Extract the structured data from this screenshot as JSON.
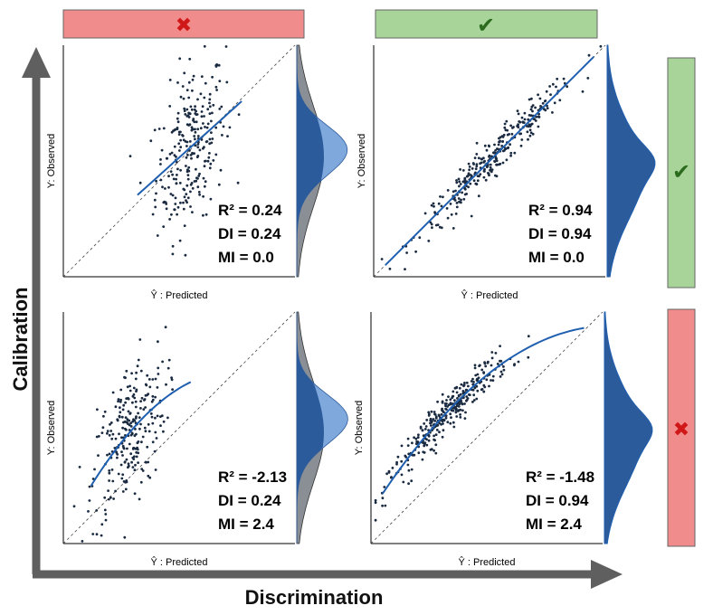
{
  "figure": {
    "x_axis_label": "Discrimination",
    "y_axis_label": "Calibration",
    "colors": {
      "bad": "#f08c8c",
      "good": "#a8d49a",
      "fit_line": "#1f5fb0",
      "points": "#1a2a40",
      "density_dark": "#2c5b9c",
      "density_light": "#7fa8dc",
      "density_gray": "#8a8f96"
    },
    "column_headers": [
      {
        "status": "bad",
        "icon": "cross-icon",
        "glyph": "✖"
      },
      {
        "status": "good",
        "icon": "check-icon",
        "glyph": "✔"
      }
    ],
    "row_headers": [
      {
        "status": "good",
        "icon": "check-icon",
        "glyph": "✔"
      },
      {
        "status": "bad",
        "icon": "cross-icon",
        "glyph": "✖"
      }
    ]
  },
  "chart_data": [
    {
      "type": "scatter",
      "position": "top-left",
      "xlabel": "Ŷ : Predicted",
      "ylabel": "Y: Observed",
      "xlim": [
        0,
        1
      ],
      "ylim": [
        0,
        1
      ],
      "fit": "linear",
      "reference_line": "y = x (dashed)",
      "stats": {
        "r2": "R² = 0.24",
        "di": "DI = 0.24",
        "mi": "MI = 0.0"
      },
      "density": "two overlapping densities (gray and light blue) with dark overlap"
    },
    {
      "type": "scatter",
      "position": "top-right",
      "xlabel": "Ŷ : Predicted",
      "ylabel": "Y: Observed",
      "xlim": [
        0,
        1
      ],
      "ylim": [
        0,
        1
      ],
      "fit": "linear",
      "reference_line": "y = x (dashed)",
      "stats": {
        "r2": "R² = 0.94",
        "di": "DI = 0.94",
        "mi": "MI = 0.0"
      },
      "density": "single blue density"
    },
    {
      "type": "scatter",
      "position": "bottom-left",
      "xlabel": "Ŷ : Predicted",
      "ylabel": "Y: Observed",
      "xlim": [
        0,
        1
      ],
      "ylim": [
        0,
        1
      ],
      "fit": "concave curve",
      "reference_line": "y = x (dashed)",
      "stats": {
        "r2": "R² = -2.13",
        "di": "DI = 0.24",
        "mi": "MI = 2.4"
      },
      "density": "two overlapping densities (gray and light blue) with dark overlap"
    },
    {
      "type": "scatter",
      "position": "bottom-right",
      "xlabel": "Ŷ : Predicted",
      "ylabel": "Y: Observed",
      "xlim": [
        0,
        1
      ],
      "ylim": [
        0,
        1
      ],
      "fit": "concave curve",
      "reference_line": "y = x (dashed)",
      "stats": {
        "r2": "R² = -1.48",
        "di": "DI = 0.94",
        "mi": "MI = 2.4"
      },
      "density": "single blue density"
    }
  ]
}
